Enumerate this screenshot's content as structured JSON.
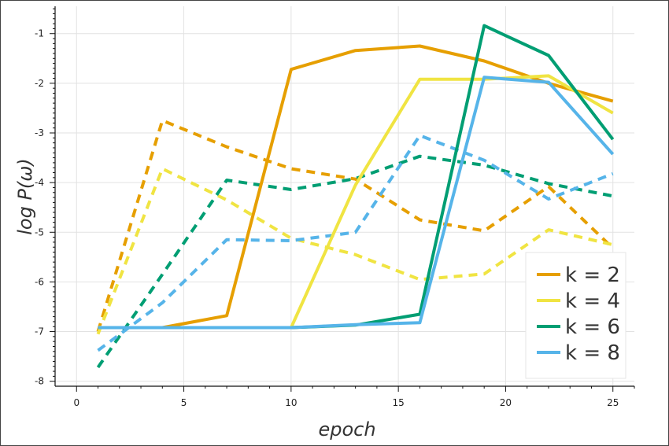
{
  "chart_data": {
    "type": "line",
    "xlabel": "epoch",
    "ylabel": "log P(ω)",
    "xlim": [
      -1,
      26
    ],
    "ylim": [
      -8.1,
      -0.45
    ],
    "x_ticks": [
      0,
      5,
      10,
      15,
      20,
      25
    ],
    "y_ticks": [
      -8,
      -7,
      -6,
      -5,
      -4,
      -3,
      -2,
      -1
    ],
    "grid": true,
    "legend_position": "bottom-right",
    "series": [
      {
        "name": "k = 2",
        "color": "#E69F00",
        "dash": "solid",
        "x": [
          1,
          4,
          7,
          10,
          13,
          16,
          19,
          22,
          25
        ],
        "values": [
          -6.92,
          -6.92,
          -6.68,
          -1.72,
          -1.34,
          -1.25,
          -1.55,
          -2.0,
          -2.36
        ]
      },
      {
        "name": "k = 4",
        "color": "#F0E442",
        "dash": "solid",
        "x": [
          1,
          4,
          7,
          10,
          13,
          16,
          19,
          22,
          25
        ],
        "values": [
          -6.92,
          -6.92,
          -6.92,
          -6.92,
          -4.05,
          -1.92,
          -1.92,
          -1.85,
          -2.6
        ]
      },
      {
        "name": "k = 6",
        "color": "#009E73",
        "dash": "solid",
        "x": [
          1,
          4,
          7,
          10,
          13,
          16,
          19,
          22,
          25
        ],
        "values": [
          -6.92,
          -6.92,
          -6.92,
          -6.92,
          -6.87,
          -6.65,
          -0.84,
          -1.44,
          -3.13
        ]
      },
      {
        "name": "k = 8",
        "color": "#56B4E9",
        "dash": "solid",
        "x": [
          1,
          4,
          7,
          10,
          13,
          16,
          19,
          22,
          25
        ],
        "values": [
          -6.92,
          -6.92,
          -6.92,
          -6.92,
          -6.86,
          -6.82,
          -1.88,
          -1.98,
          -3.43
        ]
      },
      {
        "name": "",
        "color": "#E69F00",
        "dash": "dashed",
        "x": [
          1,
          4,
          7,
          10,
          13,
          16,
          19,
          22,
          25
        ],
        "values": [
          -7.0,
          -2.75,
          -3.28,
          -3.72,
          -3.93,
          -4.75,
          -4.97,
          -4.08,
          -5.32
        ]
      },
      {
        "name": "",
        "color": "#F0E442",
        "dash": "dashed",
        "x": [
          1,
          4,
          7,
          10,
          13,
          16,
          19,
          22,
          25
        ],
        "values": [
          -7.05,
          -3.72,
          -4.35,
          -5.12,
          -5.45,
          -5.95,
          -5.84,
          -4.95,
          -5.25
        ]
      },
      {
        "name": "",
        "color": "#009E73",
        "dash": "dashed",
        "x": [
          1,
          4,
          7,
          10,
          13,
          16,
          19,
          22,
          25
        ],
        "values": [
          -7.72,
          -5.85,
          -3.95,
          -4.14,
          -3.92,
          -3.47,
          -3.65,
          -4.02,
          -4.27
        ]
      },
      {
        "name": "",
        "color": "#56B4E9",
        "dash": "dashed",
        "x": [
          1,
          4,
          7,
          10,
          13,
          16,
          19,
          22,
          25
        ],
        "values": [
          -7.38,
          -6.42,
          -5.15,
          -5.17,
          -5.0,
          -3.05,
          -3.55,
          -4.33,
          -3.82
        ]
      }
    ]
  }
}
